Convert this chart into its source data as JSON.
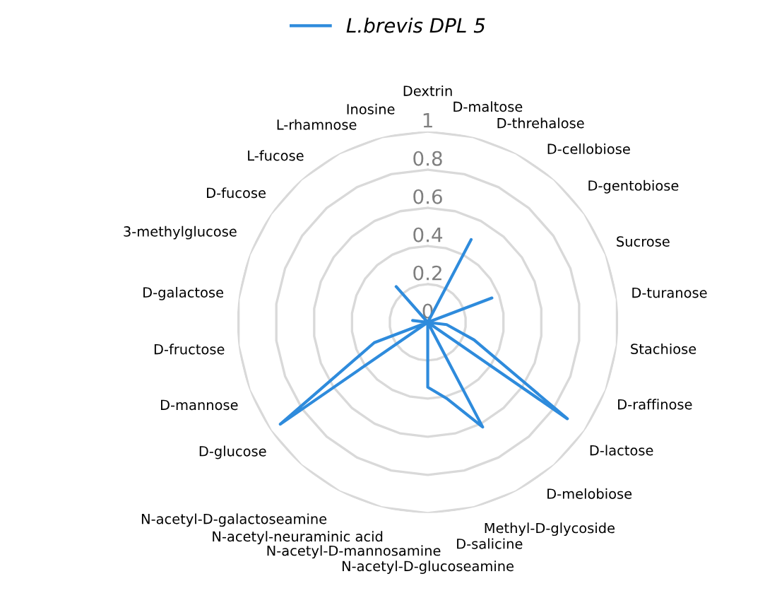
{
  "chart_data": {
    "type": "radar",
    "categories": [
      "Dextrin",
      "D-maltose",
      "D-threhalose",
      "D-cellobiose",
      "D-gentobiose",
      "Sucrose",
      "D-turanose",
      "Stachiose",
      "D-raffinose",
      "D-lactose",
      "D-melobiose",
      "Methyl-D-glycoside",
      "D-salicine",
      "N-acetyl-D-glucoseamine",
      "N-acetyl-D-mannosamine",
      "N-acetyl-neuraminic acid",
      "N-acetyl-D-galactoseamine",
      "D-glucose",
      "D-mannose",
      "D-fructose",
      "D-galactose",
      "3-methylglucose",
      "D-fucose",
      "L-fucose",
      "L-rhamnose",
      "Inosine"
    ],
    "series": [
      {
        "name": "L.brevis DPL 5",
        "color": "#2e8bdc",
        "values": [
          0,
          0,
          0.49,
          0,
          0,
          0.36,
          0,
          0.1,
          0.26,
          0.89,
          0,
          0.62,
          0.41,
          0.34,
          0,
          0,
          0,
          0.94,
          0.3,
          0,
          0.08,
          0,
          0,
          0.25,
          0,
          0
        ]
      }
    ],
    "ylim": [
      0,
      1
    ],
    "yticks": [
      0,
      0.2,
      0.4,
      0.6,
      0.8,
      1
    ],
    "grid": "y",
    "legend": "top",
    "marker": "none",
    "line_style": "solid"
  }
}
